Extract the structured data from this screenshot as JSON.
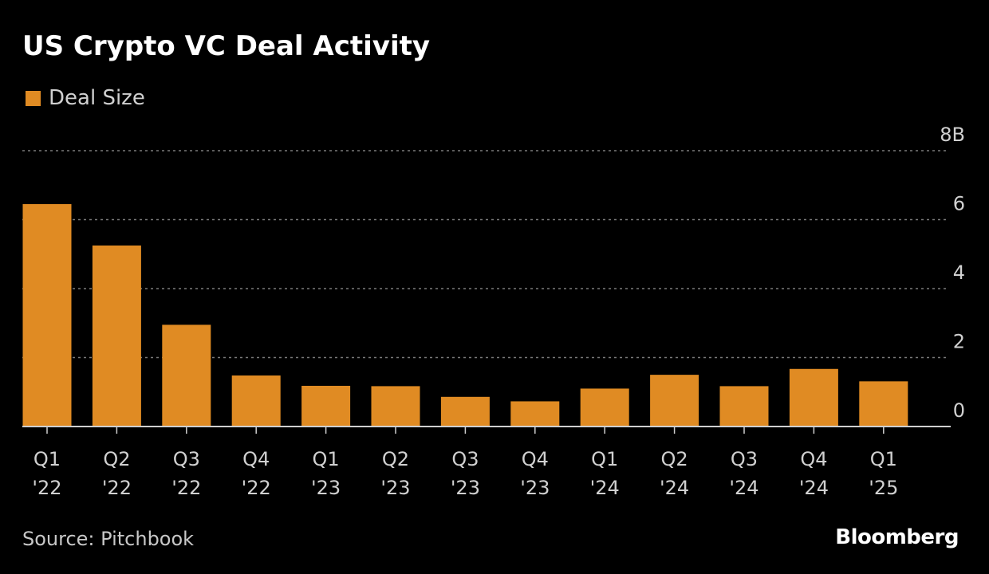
{
  "title": "US Crypto VC Deal Activity",
  "source": "Source: Pitchbook",
  "brand": "Bloomberg",
  "colors": {
    "background": "#000000",
    "bar": "#e08b23",
    "grid": "#7a7a7a",
    "axis": "#cfcfcf"
  },
  "chart_data": {
    "type": "bar",
    "categories": [
      "Q1 '22",
      "Q2 '22",
      "Q3 '22",
      "Q4 '22",
      "Q1 '23",
      "Q2 '23",
      "Q3 '23",
      "Q4 '23",
      "Q1 '24",
      "Q2 '24",
      "Q3 '24",
      "Q4 '24",
      "Q1 '25"
    ],
    "category_lines": [
      [
        "Q1",
        "'22"
      ],
      [
        "Q2",
        "'22"
      ],
      [
        "Q3",
        "'22"
      ],
      [
        "Q4",
        "'22"
      ],
      [
        "Q1",
        "'23"
      ],
      [
        "Q2",
        "'23"
      ],
      [
        "Q3",
        "'23"
      ],
      [
        "Q4",
        "'23"
      ],
      [
        "Q1",
        "'24"
      ],
      [
        "Q2",
        "'24"
      ],
      [
        "Q3",
        "'24"
      ],
      [
        "Q4",
        "'24"
      ],
      [
        "Q1",
        "'25"
      ]
    ],
    "series": [
      {
        "name": "Deal Size",
        "values": [
          6.45,
          5.25,
          2.95,
          1.48,
          1.18,
          1.17,
          0.86,
          0.73,
          1.1,
          1.5,
          1.17,
          1.67,
          1.31
        ]
      }
    ],
    "y_ticks": [
      {
        "value": 0,
        "label": "0"
      },
      {
        "value": 2,
        "label": "2"
      },
      {
        "value": 4,
        "label": "4"
      },
      {
        "value": 6,
        "label": "6"
      },
      {
        "value": 8,
        "label": "8B"
      }
    ],
    "ylim": [
      0,
      8
    ],
    "y_axis_side": "right",
    "grid": true,
    "legend_position": "top-left"
  }
}
